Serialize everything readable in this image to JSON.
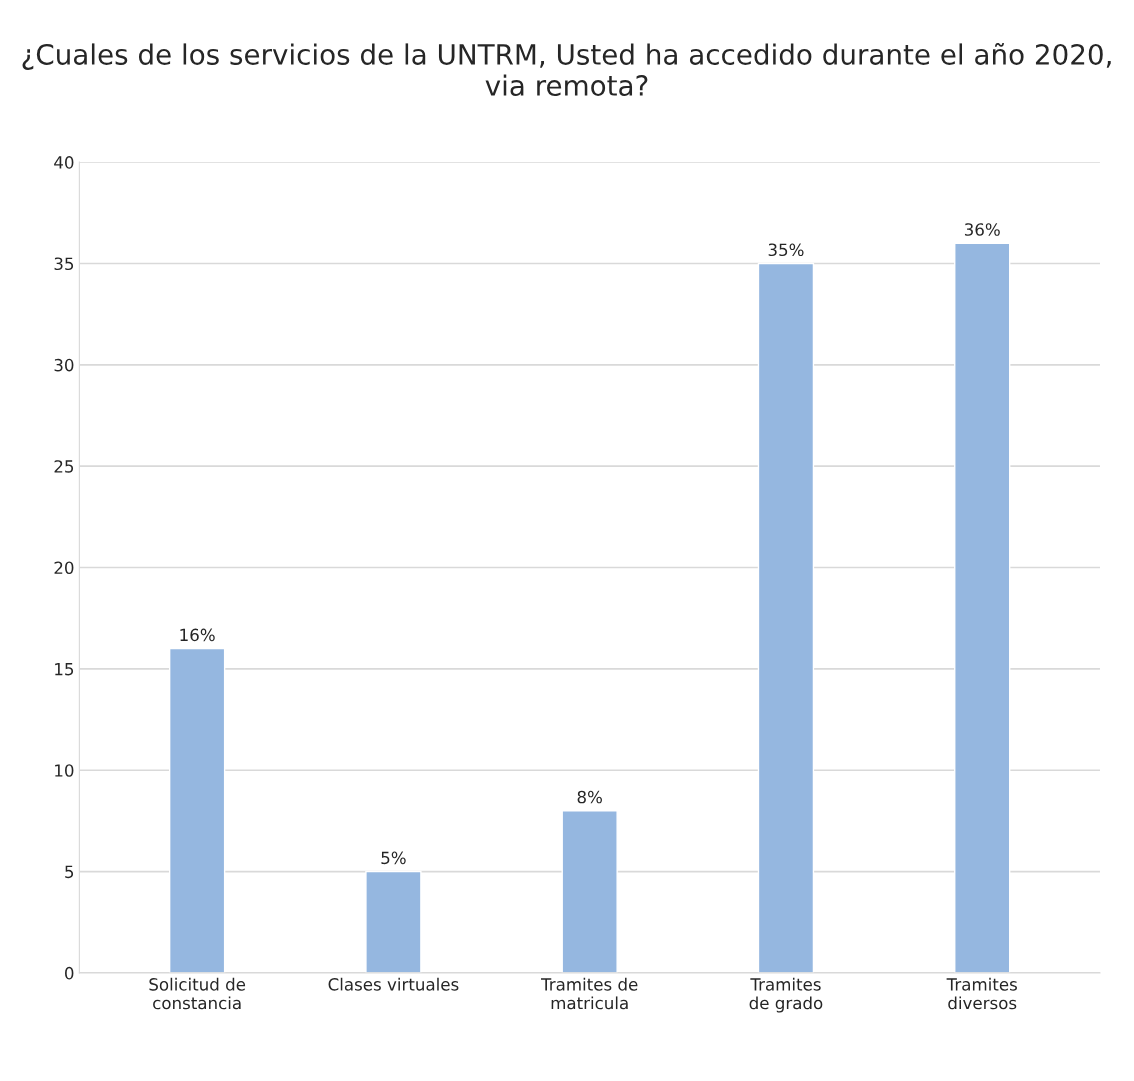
{
  "chart_data": {
    "type": "bar",
    "title": "¿Cuales de los servicios de la UNTRM, Usted ha accedido durante el año 2020, via remota?",
    "categories": [
      "Solicitud de constancia",
      "Clases virtuales",
      "Tramites de matricula",
      "Tramites de grado",
      "Tramites diversos"
    ],
    "values": [
      16,
      5,
      8,
      35,
      36
    ],
    "value_labels": [
      "16%",
      "5%",
      "8%",
      "35%",
      "36%"
    ],
    "color": "#95b7e0",
    "ylim": [
      0,
      40
    ],
    "yticks": [
      0,
      5,
      10,
      15,
      20,
      25,
      30,
      35,
      40
    ],
    "grid": "y",
    "legend": false
  }
}
